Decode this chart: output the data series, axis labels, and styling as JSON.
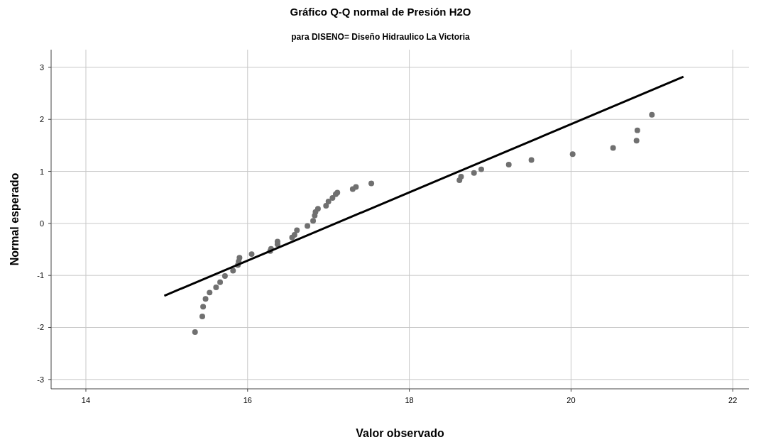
{
  "chart_data": {
    "type": "scatter",
    "title": "Gráfico Q-Q normal de Presión H2O",
    "subtitle": "para DISENO= Diseño Hidraulico La Victoria",
    "xlabel": "Valor observado",
    "ylabel": "Normal esperado",
    "xlim": [
      13.57,
      22.2
    ],
    "ylim": [
      -3.18,
      3.34
    ],
    "xticks": [
      14,
      16,
      18,
      20,
      22
    ],
    "yticks": [
      -3,
      -2,
      -1,
      0,
      1,
      2,
      3
    ],
    "grid": true,
    "series": [
      {
        "marker": "circle",
        "color": "#707070",
        "x": [
          15.35,
          15.44,
          15.45,
          15.48,
          15.53,
          15.61,
          15.66,
          15.72,
          15.82,
          15.88,
          15.89,
          15.9,
          16.05,
          16.28,
          16.29,
          16.37,
          16.37,
          16.55,
          16.58,
          16.61,
          16.74,
          16.81,
          16.83,
          16.84,
          16.87,
          16.97,
          17.0,
          17.05,
          17.09,
          17.11,
          17.3,
          17.34,
          17.53,
          18.62,
          18.64,
          18.8,
          18.89,
          19.23,
          19.51,
          20.02,
          20.52,
          20.81,
          20.82,
          21.0
        ],
        "values": [
          -2.09,
          -1.79,
          -1.6,
          -1.45,
          -1.33,
          -1.23,
          -1.13,
          -1.01,
          -0.91,
          -0.8,
          -0.73,
          -0.66,
          -0.59,
          -0.53,
          -0.49,
          -0.4,
          -0.35,
          -0.27,
          -0.22,
          -0.13,
          -0.05,
          0.05,
          0.15,
          0.22,
          0.28,
          0.34,
          0.42,
          0.49,
          0.56,
          0.59,
          0.66,
          0.7,
          0.77,
          0.83,
          0.9,
          0.97,
          1.04,
          1.13,
          1.22,
          1.33,
          1.45,
          1.59,
          1.79,
          2.09
        ]
      },
      {
        "type": "line",
        "color": "#000000",
        "x": [
          14.97,
          21.39
        ],
        "values": [
          -1.39,
          2.82
        ]
      }
    ]
  }
}
